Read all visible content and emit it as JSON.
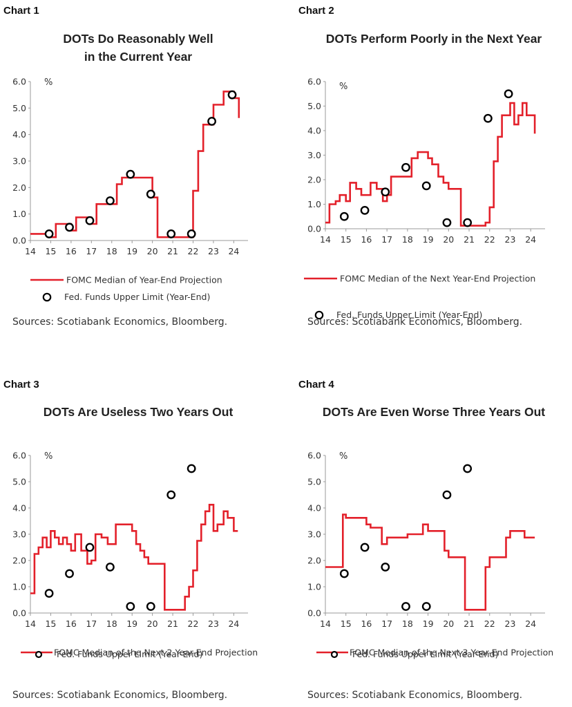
{
  "chart_data": [
    {
      "type": "line",
      "panel_label": "Chart 1",
      "title": [
        "DOTs Do Reasonably Well",
        "in the Current Year"
      ],
      "ylabel": "%",
      "ylim": [
        0,
        6
      ],
      "yticks": [
        "0.0",
        "1.0",
        "2.0",
        "3.0",
        "4.0",
        "5.0",
        "6.0"
      ],
      "xlim": [
        14,
        24.7
      ],
      "xticks": [
        "14",
        "15",
        "16",
        "17",
        "18",
        "19",
        "20",
        "21",
        "22",
        "23",
        "24"
      ],
      "series": [
        {
          "name": "FOMC Median of Year-End Projection",
          "kind": "step",
          "color": "#e3202a",
          "x": [
            14,
            14.75,
            15.0,
            15.25,
            15.75,
            16.0,
            16.25,
            16.75,
            17.0,
            17.25,
            17.75,
            18.0,
            18.25,
            18.5,
            19.75,
            20.0,
            20.25,
            20.75,
            21.0,
            21.25,
            21.75,
            22.0,
            22.25,
            22.5,
            22.75,
            23.0,
            23.25,
            23.5,
            24.0,
            24.25
          ],
          "y": [
            0.25,
            0.25,
            0.125,
            0.625,
            0.625,
            0.375,
            0.875,
            0.875,
            0.625,
            1.375,
            1.375,
            1.375,
            2.125,
            2.375,
            2.375,
            1.625,
            0.125,
            0.125,
            0.125,
            0.125,
            0.125,
            1.875,
            3.375,
            4.375,
            4.375,
            5.125,
            5.125,
            5.625,
            5.375,
            4.625
          ]
        },
        {
          "name": "Fed. Funds Upper Limit (Year-End)",
          "kind": "scatter",
          "x": [
            14.92,
            15.92,
            16.92,
            17.92,
            18.92,
            19.92,
            20.92,
            21.92,
            22.92,
            23.92
          ],
          "y": [
            0.25,
            0.5,
            0.75,
            1.5,
            2.5,
            1.75,
            0.25,
            0.25,
            4.5,
            5.5
          ]
        }
      ],
      "source": "Sources: Scotiabank Economics, Bloomberg."
    },
    {
      "type": "line",
      "panel_label": "Chart 2",
      "title": [
        "DOTs Perform Poorly in the Next Year"
      ],
      "ylabel": "%",
      "ylim": [
        0,
        6
      ],
      "yticks": [
        "0.0",
        "1.0",
        "2.0",
        "3.0",
        "4.0",
        "5.0",
        "6.0"
      ],
      "xlim": [
        14,
        24.7
      ],
      "xticks": [
        "14",
        "15",
        "16",
        "17",
        "18",
        "19",
        "20",
        "21",
        "22",
        "23",
        "24"
      ],
      "series": [
        {
          "name": "FOMC Median of the Next Year-End Projection",
          "kind": "step",
          "color": "#e3202a",
          "x": [
            14,
            14.2,
            14.5,
            14.7,
            15.0,
            15.2,
            15.5,
            15.75,
            16.2,
            16.5,
            16.8,
            17.0,
            17.2,
            18.2,
            18.5,
            19.0,
            19.2,
            19.5,
            19.75,
            20.0,
            20.5,
            20.6,
            21.1,
            21.6,
            21.8,
            22.0,
            22.2,
            22.4,
            22.6,
            22.8,
            23.0,
            23.2,
            23.4,
            23.6,
            23.8,
            24.0,
            24.2
          ],
          "y": [
            0.25,
            1.0,
            1.125,
            1.375,
            1.125,
            1.875,
            1.625,
            1.375,
            1.875,
            1.625,
            1.125,
            1.375,
            2.125,
            2.875,
            3.125,
            2.875,
            2.625,
            2.125,
            1.875,
            1.625,
            1.625,
            0.125,
            0.125,
            0.125,
            0.25,
            0.875,
            2.75,
            3.75,
            4.625,
            4.625,
            5.125,
            4.25,
            4.625,
            5.125,
            4.625,
            4.625,
            3.875
          ]
        },
        {
          "name": "Fed. Funds Upper Limit (Year-End)",
          "kind": "scatter",
          "x": [
            14.92,
            15.92,
            16.92,
            17.92,
            18.92,
            19.92,
            20.92,
            21.92,
            22.92
          ],
          "y": [
            0.5,
            0.75,
            1.5,
            2.5,
            1.75,
            0.25,
            0.25,
            4.5,
            5.5
          ]
        }
      ],
      "source": "Sources: Scotiabank Economics, Bloomberg."
    },
    {
      "type": "line",
      "panel_label": "Chart 3",
      "title": [
        "DOTs Are Useless Two Years Out"
      ],
      "ylabel": "%",
      "ylim": [
        0,
        6
      ],
      "yticks": [
        "0.0",
        "1.0",
        "2.0",
        "3.0",
        "4.0",
        "5.0",
        "6.0"
      ],
      "xlim": [
        14,
        24.7
      ],
      "xticks": [
        "14",
        "15",
        "16",
        "17",
        "18",
        "19",
        "20",
        "21",
        "22",
        "23",
        "24"
      ],
      "series": [
        {
          "name": "FOMC Median of the Next 2 Year-End Projection",
          "kind": "step",
          "color": "#e3202a",
          "x": [
            14,
            14.2,
            14.4,
            14.6,
            14.8,
            15.0,
            15.2,
            15.4,
            15.6,
            15.8,
            16.0,
            16.2,
            16.5,
            16.8,
            17.0,
            17.2,
            17.5,
            17.8,
            18.2,
            18.9,
            19.0,
            19.2,
            19.4,
            19.6,
            19.8,
            20.0,
            20.5,
            20.6,
            21.4,
            21.6,
            21.8,
            22.0,
            22.2,
            22.4,
            22.6,
            22.8,
            23.0,
            23.2,
            23.5,
            23.7,
            24.0,
            24.2
          ],
          "y": [
            0.75,
            2.25,
            2.5,
            2.875,
            2.5,
            3.125,
            2.875,
            2.625,
            2.875,
            2.625,
            2.375,
            3.0,
            2.375,
            1.875,
            2.0,
            3.0,
            2.875,
            2.625,
            3.375,
            3.375,
            3.125,
            2.625,
            2.375,
            2.125,
            1.875,
            1.875,
            1.875,
            0.125,
            0.125,
            0.625,
            1.0,
            1.625,
            2.75,
            3.375,
            3.875,
            4.125,
            3.125,
            3.375,
            3.875,
            3.625,
            3.125,
            3.125
          ]
        },
        {
          "name": "Fed. Funds Upper Limit (Year-End)",
          "kind": "scatter",
          "x": [
            14.92,
            15.92,
            16.92,
            17.92,
            18.92,
            19.92,
            20.92,
            21.92
          ],
          "y": [
            0.75,
            1.5,
            2.5,
            1.75,
            0.25,
            0.25,
            4.5,
            5.5
          ]
        }
      ],
      "source": "Sources: Scotiabank Economics, Bloomberg."
    },
    {
      "type": "line",
      "panel_label": "Chart 4",
      "title": [
        "DOTs Are Even Worse Three Years Out"
      ],
      "ylabel": "%",
      "ylim": [
        0,
        6
      ],
      "yticks": [
        "0.0",
        "1.0",
        "2.0",
        "3.0",
        "4.0",
        "5.0",
        "6.0"
      ],
      "xlim": [
        14,
        24.7
      ],
      "xticks": [
        "14",
        "15",
        "16",
        "17",
        "18",
        "19",
        "20",
        "21",
        "22",
        "23",
        "24"
      ],
      "series": [
        {
          "name": "FOMC Median of the Next 3 Year-End Projection",
          "kind": "step",
          "color": "#e3202a",
          "x": [
            14,
            14.7,
            14.85,
            15.0,
            15.75,
            16.0,
            16.2,
            16.5,
            16.75,
            17.0,
            17.2,
            17.8,
            18.0,
            18.3,
            18.75,
            19.0,
            19.2,
            19.8,
            20.0,
            20.2,
            20.6,
            20.8,
            21.4,
            21.8,
            22.0,
            22.2,
            22.8,
            23.0,
            23.3,
            23.7,
            24.0,
            24.2
          ],
          "y": [
            1.75,
            1.75,
            3.75,
            3.625,
            3.625,
            3.375,
            3.25,
            3.25,
            2.625,
            2.875,
            2.875,
            2.875,
            3.0,
            3.0,
            3.375,
            3.125,
            3.125,
            2.375,
            2.125,
            2.125,
            2.125,
            0.125,
            0.125,
            1.75,
            2.125,
            2.125,
            2.875,
            3.125,
            3.125,
            2.875,
            2.875,
            2.875
          ]
        },
        {
          "name": "Fed. Funds Upper Limit (Year-End)",
          "kind": "scatter",
          "x": [
            14.92,
            15.92,
            16.92,
            17.92,
            18.92,
            19.92,
            20.92
          ],
          "y": [
            1.5,
            2.5,
            1.75,
            0.25,
            0.25,
            4.5,
            5.5
          ]
        }
      ],
      "source": "Sources: Scotiabank Economics, Bloomberg."
    }
  ]
}
